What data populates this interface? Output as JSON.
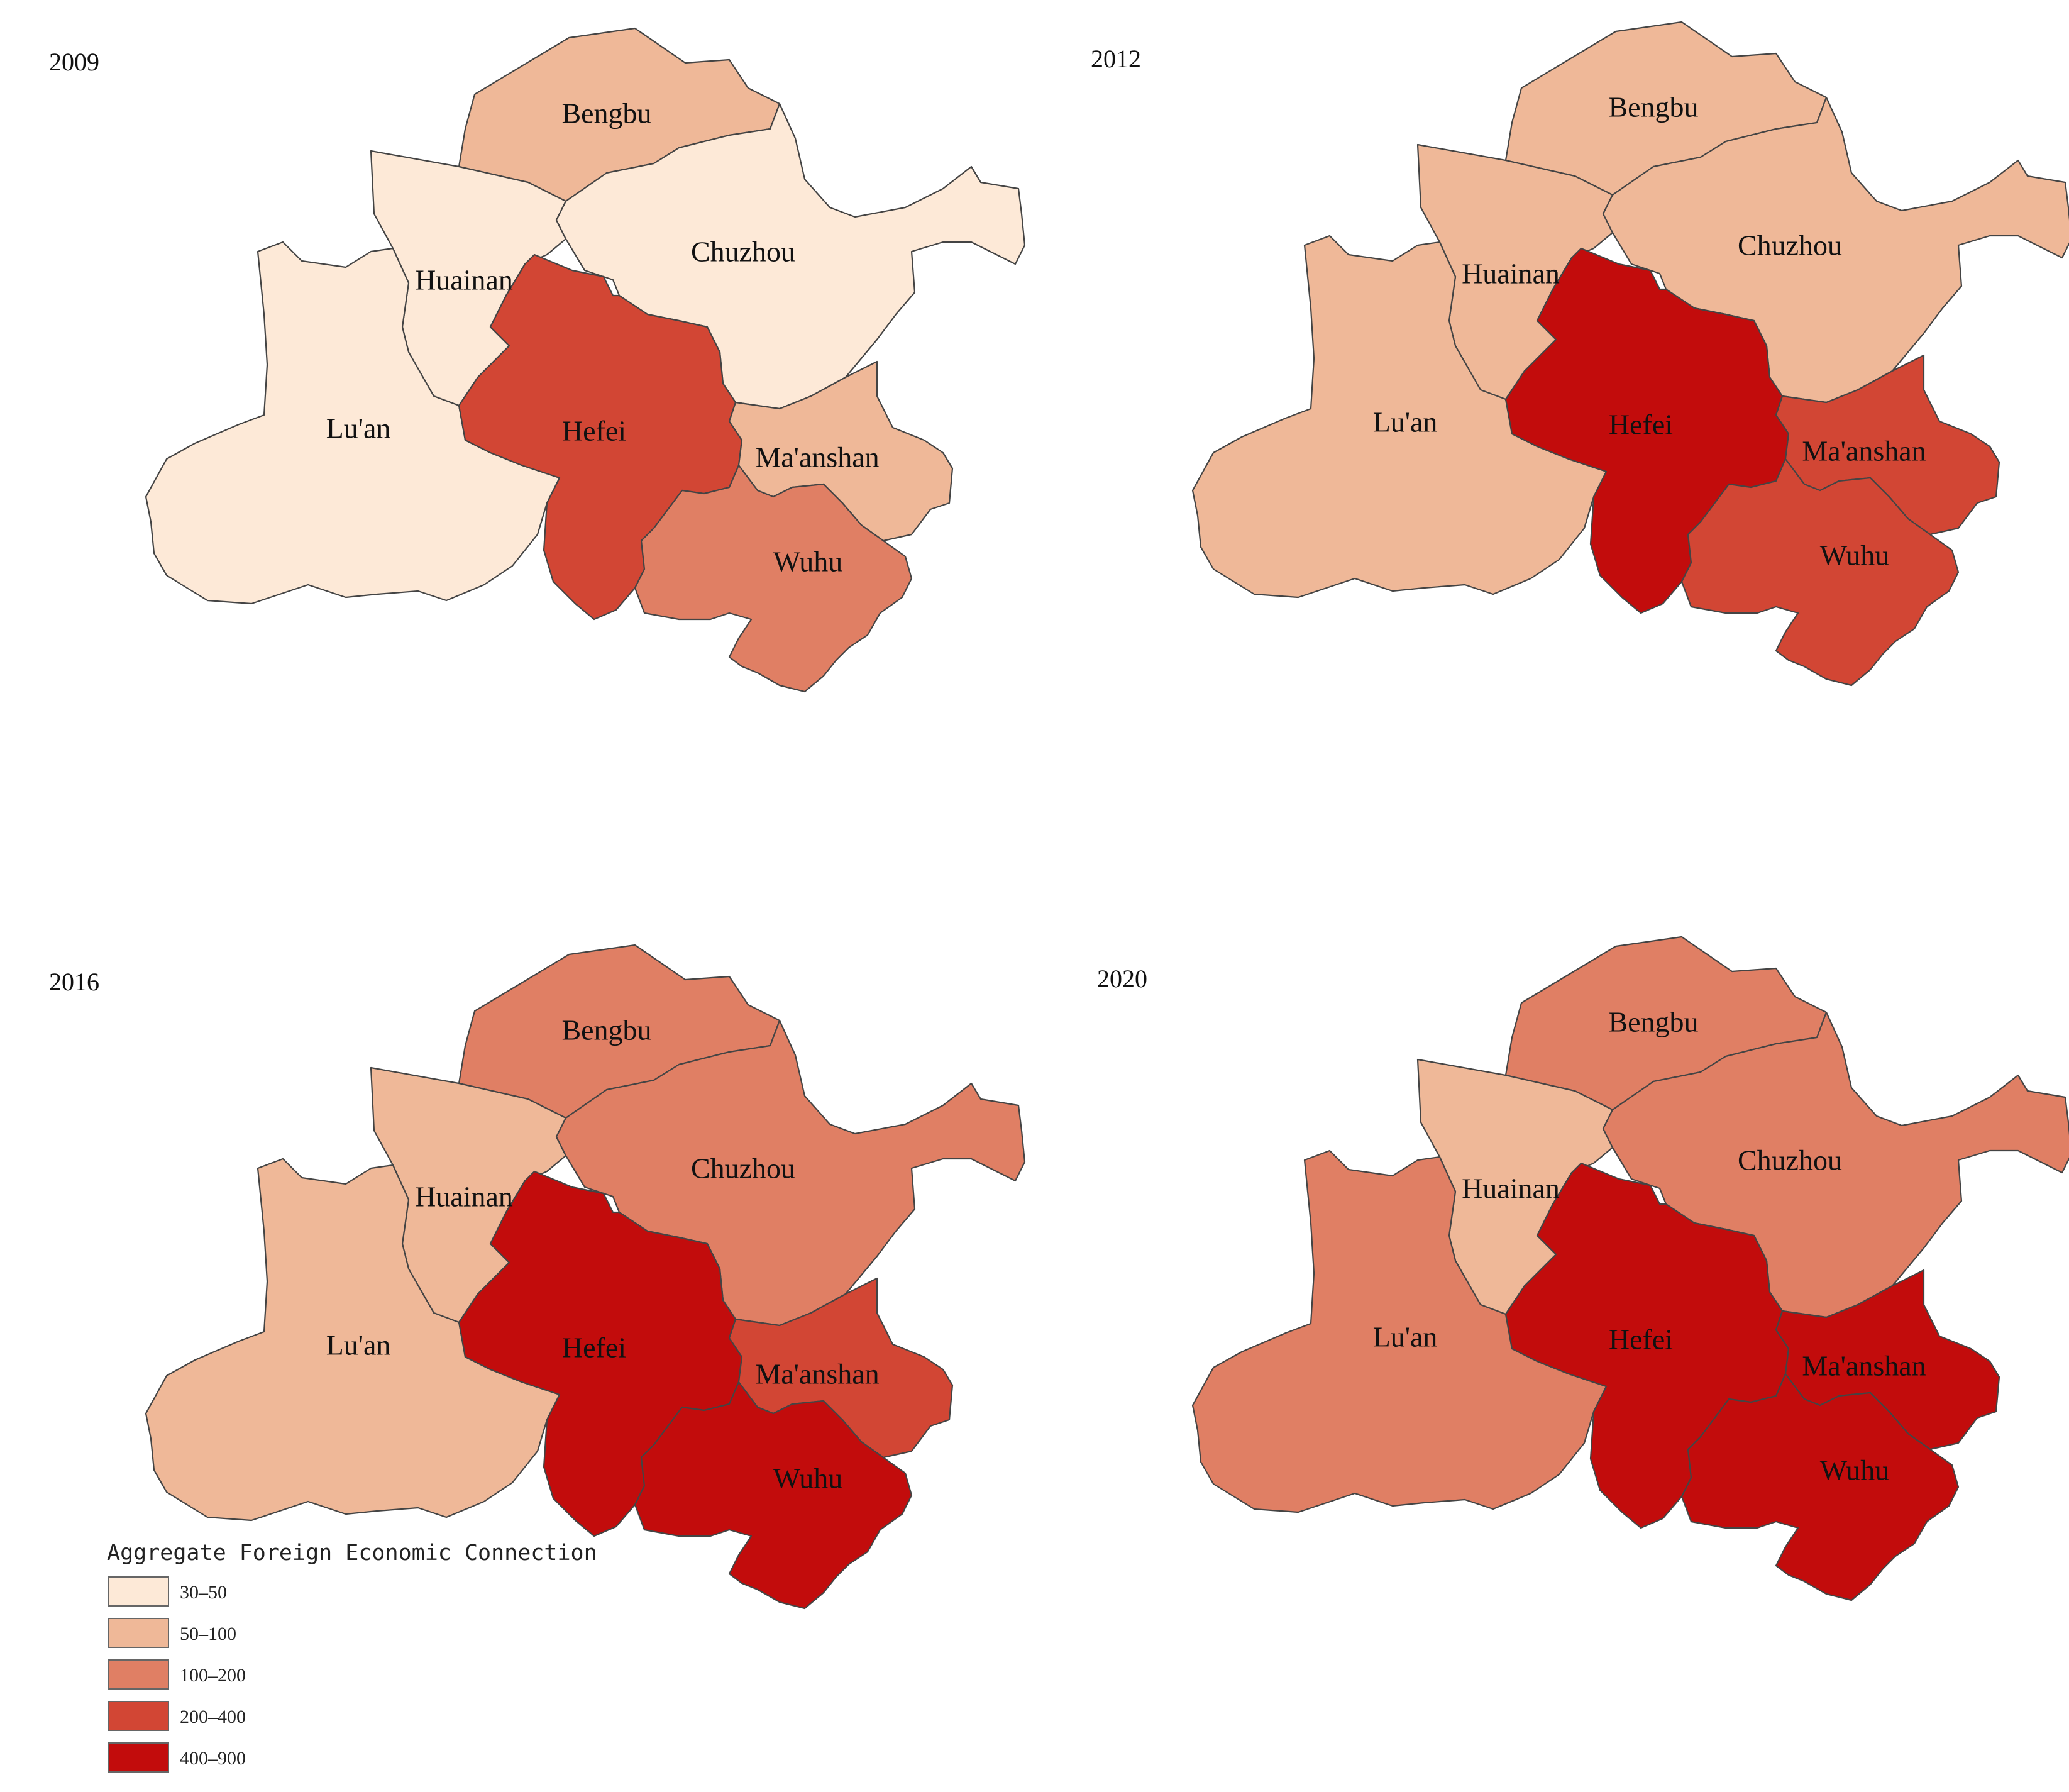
{
  "legend": {
    "title": "Aggregate Foreign Economic Connection",
    "classes": [
      {
        "label": "30–50",
        "color": "#fde9d7"
      },
      {
        "label": "50–100",
        "color": "#efb898"
      },
      {
        "label": "100–200",
        "color": "#e07f64"
      },
      {
        "label": "200–400",
        "color": "#d24634"
      },
      {
        "label": "400–900",
        "color": "#c20c0c"
      }
    ]
  },
  "panels": [
    {
      "year": "2009",
      "classes": {
        "bengbu": 1,
        "huainan": 0,
        "chuzhou": 0,
        "luan": 0,
        "hefei": 3,
        "maanshan": 1,
        "wuhu": 2
      }
    },
    {
      "year": "2012",
      "classes": {
        "bengbu": 1,
        "huainan": 1,
        "chuzhou": 1,
        "luan": 1,
        "hefei": 4,
        "maanshan": 3,
        "wuhu": 3
      }
    },
    {
      "year": "2016",
      "classes": {
        "bengbu": 2,
        "huainan": 1,
        "chuzhou": 2,
        "luan": 1,
        "hefei": 4,
        "maanshan": 3,
        "wuhu": 4
      }
    },
    {
      "year": "2020",
      "classes": {
        "bengbu": 2,
        "huainan": 1,
        "chuzhou": 2,
        "luan": 2,
        "hefei": 4,
        "maanshan": 4,
        "wuhu": 4
      }
    }
  ],
  "cities": [
    {
      "id": "bengbu",
      "name": "Bengbu"
    },
    {
      "id": "huainan",
      "name": "Huainan"
    },
    {
      "id": "chuzhou",
      "name": "Chuzhou"
    },
    {
      "id": "luan",
      "name": "Lu'an"
    },
    {
      "id": "hefei",
      "name": "Hefei"
    },
    {
      "id": "maanshan",
      "name": "Ma'anshan"
    },
    {
      "id": "wuhu",
      "name": "Wuhu"
    }
  ]
}
